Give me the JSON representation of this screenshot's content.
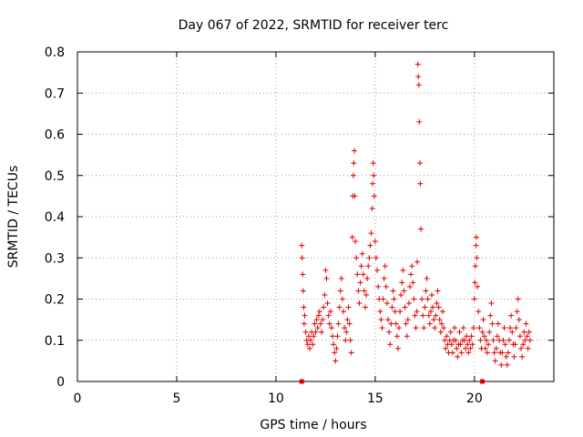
{
  "chart_data": {
    "type": "scatter",
    "title": "Day 067 of 2022, SRMTID for receiver terc",
    "xlabel": "GPS time / hours",
    "ylabel": "SRMTID / TECUs",
    "xlim": [
      0,
      24
    ],
    "ylim": [
      0,
      0.8
    ],
    "x_ticks": [
      0,
      5,
      10,
      15,
      20
    ],
    "x_tick_labels": [
      "0",
      "5",
      "10",
      "15",
      "20"
    ],
    "y_ticks": [
      0,
      0.1,
      0.2,
      0.3,
      0.4,
      0.5,
      0.6,
      0.7,
      0.8
    ],
    "y_tick_labels": [
      "0",
      "0.1",
      "0.2",
      "0.3",
      "0.4",
      "0.5",
      "0.6",
      "0.7",
      "0.8"
    ],
    "grid": true,
    "series": [
      {
        "name": "SRMTID",
        "marker": "+",
        "color": "#e00000",
        "points": [
          [
            11.3,
            0.33
          ],
          [
            11.32,
            0.3
          ],
          [
            11.35,
            0.26
          ],
          [
            11.37,
            0.22
          ],
          [
            11.4,
            0.18
          ],
          [
            11.42,
            0.14
          ],
          [
            11.45,
            0.16
          ],
          [
            11.5,
            0.12
          ],
          [
            11.55,
            0.1
          ],
          [
            11.6,
            0.09
          ],
          [
            11.65,
            0.11
          ],
          [
            11.7,
            0.08
          ],
          [
            11.75,
            0.1
          ],
          [
            11.8,
            0.12
          ],
          [
            11.85,
            0.09
          ],
          [
            11.9,
            0.11
          ],
          [
            11.95,
            0.14
          ],
          [
            12.0,
            0.12
          ],
          [
            12.05,
            0.15
          ],
          [
            12.1,
            0.13
          ],
          [
            12.15,
            0.16
          ],
          [
            12.2,
            0.17
          ],
          [
            12.25,
            0.14
          ],
          [
            12.3,
            0.12
          ],
          [
            12.35,
            0.15
          ],
          [
            12.4,
            0.18
          ],
          [
            12.45,
            0.21
          ],
          [
            12.5,
            0.27
          ],
          [
            12.55,
            0.25
          ],
          [
            12.6,
            0.19
          ],
          [
            12.65,
            0.16
          ],
          [
            12.7,
            0.14
          ],
          [
            12.75,
            0.17
          ],
          [
            12.8,
            0.13
          ],
          [
            12.85,
            0.11
          ],
          [
            12.9,
            0.09
          ],
          [
            12.95,
            0.07
          ],
          [
            13.0,
            0.05
          ],
          [
            13.05,
            0.08
          ],
          [
            13.1,
            0.11
          ],
          [
            13.15,
            0.14
          ],
          [
            13.2,
            0.18
          ],
          [
            13.25,
            0.22
          ],
          [
            13.3,
            0.25
          ],
          [
            13.35,
            0.2
          ],
          [
            13.4,
            0.17
          ],
          [
            13.45,
            0.13
          ],
          [
            13.5,
            0.1
          ],
          [
            13.55,
            0.12
          ],
          [
            13.6,
            0.15
          ],
          [
            13.65,
            0.18
          ],
          [
            13.7,
            0.14
          ],
          [
            13.75,
            0.1
          ],
          [
            13.8,
            0.07
          ],
          [
            13.85,
            0.35
          ],
          [
            13.87,
            0.45
          ],
          [
            13.9,
            0.5
          ],
          [
            13.92,
            0.53
          ],
          [
            13.95,
            0.56
          ],
          [
            13.97,
            0.45
          ],
          [
            14.0,
            0.34
          ],
          [
            14.05,
            0.3
          ],
          [
            14.1,
            0.26
          ],
          [
            14.15,
            0.22
          ],
          [
            14.2,
            0.19
          ],
          [
            14.25,
            0.24
          ],
          [
            14.3,
            0.28
          ],
          [
            14.35,
            0.31
          ],
          [
            14.4,
            0.26
          ],
          [
            14.45,
            0.22
          ],
          [
            14.5,
            0.18
          ],
          [
            14.55,
            0.21
          ],
          [
            14.6,
            0.25
          ],
          [
            14.65,
            0.28
          ],
          [
            14.7,
            0.3
          ],
          [
            14.75,
            0.33
          ],
          [
            14.8,
            0.36
          ],
          [
            14.85,
            0.42
          ],
          [
            14.87,
            0.48
          ],
          [
            14.9,
            0.53
          ],
          [
            14.92,
            0.5
          ],
          [
            14.95,
            0.45
          ],
          [
            15.0,
            0.34
          ],
          [
            15.05,
            0.3
          ],
          [
            15.1,
            0.27
          ],
          [
            15.15,
            0.23
          ],
          [
            15.2,
            0.2
          ],
          [
            15.25,
            0.17
          ],
          [
            15.3,
            0.15
          ],
          [
            15.35,
            0.13
          ],
          [
            15.4,
            0.2
          ],
          [
            15.45,
            0.25
          ],
          [
            15.5,
            0.28
          ],
          [
            15.55,
            0.23
          ],
          [
            15.6,
            0.19
          ],
          [
            15.65,
            0.15
          ],
          [
            15.7,
            0.12
          ],
          [
            15.75,
            0.09
          ],
          [
            15.8,
            0.14
          ],
          [
            15.85,
            0.18
          ],
          [
            15.9,
            0.22
          ],
          [
            15.95,
            0.2
          ],
          [
            16.0,
            0.17
          ],
          [
            16.05,
            0.14
          ],
          [
            16.1,
            0.11
          ],
          [
            16.15,
            0.08
          ],
          [
            16.2,
            0.13
          ],
          [
            16.25,
            0.17
          ],
          [
            16.3,
            0.21
          ],
          [
            16.35,
            0.24
          ],
          [
            16.4,
            0.27
          ],
          [
            16.45,
            0.22
          ],
          [
            16.5,
            0.18
          ],
          [
            16.55,
            0.14
          ],
          [
            16.6,
            0.11
          ],
          [
            16.65,
            0.15
          ],
          [
            16.7,
            0.19
          ],
          [
            16.75,
            0.23
          ],
          [
            16.8,
            0.26
          ],
          [
            16.85,
            0.28
          ],
          [
            16.9,
            0.24
          ],
          [
            16.95,
            0.2
          ],
          [
            17.0,
            0.16
          ],
          [
            17.05,
            0.13
          ],
          [
            17.1,
            0.17
          ],
          [
            17.12,
            0.29
          ],
          [
            17.15,
            0.77
          ],
          [
            17.17,
            0.74
          ],
          [
            17.2,
            0.72
          ],
          [
            17.22,
            0.63
          ],
          [
            17.25,
            0.53
          ],
          [
            17.27,
            0.48
          ],
          [
            17.3,
            0.37
          ],
          [
            17.35,
            0.2
          ],
          [
            17.4,
            0.16
          ],
          [
            17.45,
            0.13
          ],
          [
            17.5,
            0.18
          ],
          [
            17.55,
            0.22
          ],
          [
            17.6,
            0.25
          ],
          [
            17.65,
            0.2
          ],
          [
            17.7,
            0.16
          ],
          [
            17.75,
            0.14
          ],
          [
            17.8,
            0.17
          ],
          [
            17.85,
            0.21
          ],
          [
            17.9,
            0.18
          ],
          [
            17.95,
            0.15
          ],
          [
            18.0,
            0.13
          ],
          [
            18.05,
            0.16
          ],
          [
            18.1,
            0.19
          ],
          [
            18.15,
            0.22
          ],
          [
            18.2,
            0.18
          ],
          [
            18.25,
            0.15
          ],
          [
            18.3,
            0.12
          ],
          [
            18.35,
            0.14
          ],
          [
            18.4,
            0.17
          ],
          [
            18.45,
            0.13
          ],
          [
            18.5,
            0.1
          ],
          [
            18.55,
            0.08
          ],
          [
            18.6,
            0.11
          ],
          [
            18.65,
            0.09
          ],
          [
            18.7,
            0.07
          ],
          [
            18.75,
            0.1
          ],
          [
            18.8,
            0.12
          ],
          [
            18.85,
            0.09
          ],
          [
            18.9,
            0.07
          ],
          [
            18.95,
            0.1
          ],
          [
            19.0,
            0.13
          ],
          [
            19.05,
            0.1
          ],
          [
            19.1,
            0.08
          ],
          [
            19.15,
            0.06
          ],
          [
            19.2,
            0.09
          ],
          [
            19.25,
            0.12
          ],
          [
            19.3,
            0.09
          ],
          [
            19.35,
            0.07
          ],
          [
            19.4,
            0.1
          ],
          [
            19.45,
            0.13
          ],
          [
            19.5,
            0.1
          ],
          [
            19.55,
            0.08
          ],
          [
            19.6,
            0.11
          ],
          [
            19.65,
            0.09
          ],
          [
            19.7,
            0.07
          ],
          [
            19.75,
            0.1
          ],
          [
            19.8,
            0.08
          ],
          [
            19.85,
            0.11
          ],
          [
            19.9,
            0.09
          ],
          [
            19.95,
            0.13
          ],
          [
            20.0,
            0.2
          ],
          [
            20.02,
            0.24
          ],
          [
            20.05,
            0.28
          ],
          [
            20.08,
            0.33
          ],
          [
            20.1,
            0.35
          ],
          [
            20.12,
            0.3
          ],
          [
            20.15,
            0.23
          ],
          [
            20.2,
            0.17
          ],
          [
            20.25,
            0.13
          ],
          [
            20.3,
            0.1
          ],
          [
            20.35,
            0.08
          ],
          [
            20.4,
            0.12
          ],
          [
            20.45,
            0.15
          ],
          [
            20.5,
            0.11
          ],
          [
            20.55,
            0.08
          ],
          [
            20.6,
            0.1
          ],
          [
            20.65,
            0.07
          ],
          [
            20.7,
            0.09
          ],
          [
            20.75,
            0.12
          ],
          [
            20.8,
            0.16
          ],
          [
            20.85,
            0.19
          ],
          [
            20.9,
            0.14
          ],
          [
            20.95,
            0.1
          ],
          [
            21.0,
            0.07
          ],
          [
            21.05,
            0.05
          ],
          [
            21.1,
            0.08
          ],
          [
            21.15,
            0.11
          ],
          [
            21.2,
            0.14
          ],
          [
            21.25,
            0.1
          ],
          [
            21.3,
            0.07
          ],
          [
            21.35,
            0.04
          ],
          [
            21.4,
            0.07
          ],
          [
            21.45,
            0.1
          ],
          [
            21.5,
            0.13
          ],
          [
            21.55,
            0.09
          ],
          [
            21.6,
            0.06
          ],
          [
            21.65,
            0.04
          ],
          [
            21.7,
            0.07
          ],
          [
            21.75,
            0.1
          ],
          [
            21.8,
            0.13
          ],
          [
            21.85,
            0.16
          ],
          [
            21.9,
            0.12
          ],
          [
            21.95,
            0.09
          ],
          [
            22.0,
            0.06
          ],
          [
            22.05,
            0.09
          ],
          [
            22.1,
            0.13
          ],
          [
            22.15,
            0.17
          ],
          [
            22.2,
            0.2
          ],
          [
            22.25,
            0.15
          ],
          [
            22.3,
            0.11
          ],
          [
            22.35,
            0.08
          ],
          [
            22.4,
            0.06
          ],
          [
            22.45,
            0.09
          ],
          [
            22.5,
            0.12
          ],
          [
            22.55,
            0.1
          ],
          [
            22.6,
            0.14
          ],
          [
            22.65,
            0.11
          ],
          [
            22.7,
            0.08
          ],
          [
            22.75,
            0.12
          ],
          [
            22.8,
            0.1
          ]
        ]
      }
    ],
    "baseline_markers": [
      11.3,
      20.4
    ]
  }
}
